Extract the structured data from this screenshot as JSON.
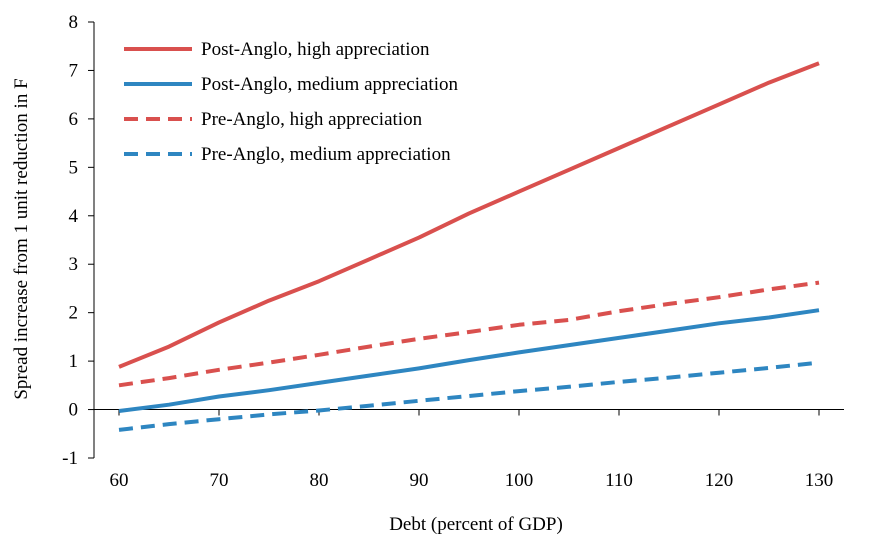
{
  "chart_data": {
    "type": "line",
    "title": "",
    "xlabel": "Debt (percent of GDP)",
    "ylabel": "Spread increase  from 1 unit reduction in F",
    "x": [
      60,
      65,
      70,
      75,
      80,
      85,
      90,
      95,
      100,
      105,
      110,
      115,
      120,
      125,
      130
    ],
    "xlim": [
      57.5,
      132.5
    ],
    "ylim": [
      -1,
      8
    ],
    "xticks": [
      60,
      70,
      80,
      90,
      100,
      110,
      120,
      130
    ],
    "yticks": [
      -1,
      0,
      1,
      2,
      3,
      4,
      5,
      6,
      7,
      8
    ],
    "grid": false,
    "legend_position": "top-left",
    "series": [
      {
        "name": "Post-Anglo, high appreciation",
        "color": "#d9504e",
        "dash": "solid",
        "values": [
          0.88,
          1.3,
          1.8,
          2.25,
          2.65,
          3.1,
          3.55,
          4.05,
          4.5,
          4.95,
          5.4,
          5.85,
          6.3,
          6.75,
          7.15
        ]
      },
      {
        "name": "Post-Anglo, medium appreciation",
        "color": "#2e86c1",
        "dash": "solid",
        "values": [
          -0.03,
          0.1,
          0.27,
          0.4,
          0.55,
          0.7,
          0.85,
          1.02,
          1.18,
          1.33,
          1.48,
          1.63,
          1.78,
          1.9,
          2.05
        ]
      },
      {
        "name": "Pre-Anglo, high appreciation",
        "color": "#d9504e",
        "dash": "dashed",
        "values": [
          0.5,
          0.65,
          0.82,
          0.97,
          1.13,
          1.3,
          1.46,
          1.6,
          1.75,
          1.85,
          2.03,
          2.18,
          2.32,
          2.48,
          2.62
        ]
      },
      {
        "name": "Pre-Anglo, medium appreciation",
        "color": "#2e86c1",
        "dash": "dashed",
        "values": [
          -0.42,
          -0.3,
          -0.2,
          -0.1,
          -0.02,
          0.08,
          0.18,
          0.28,
          0.38,
          0.47,
          0.57,
          0.66,
          0.76,
          0.86,
          0.97
        ]
      }
    ]
  }
}
